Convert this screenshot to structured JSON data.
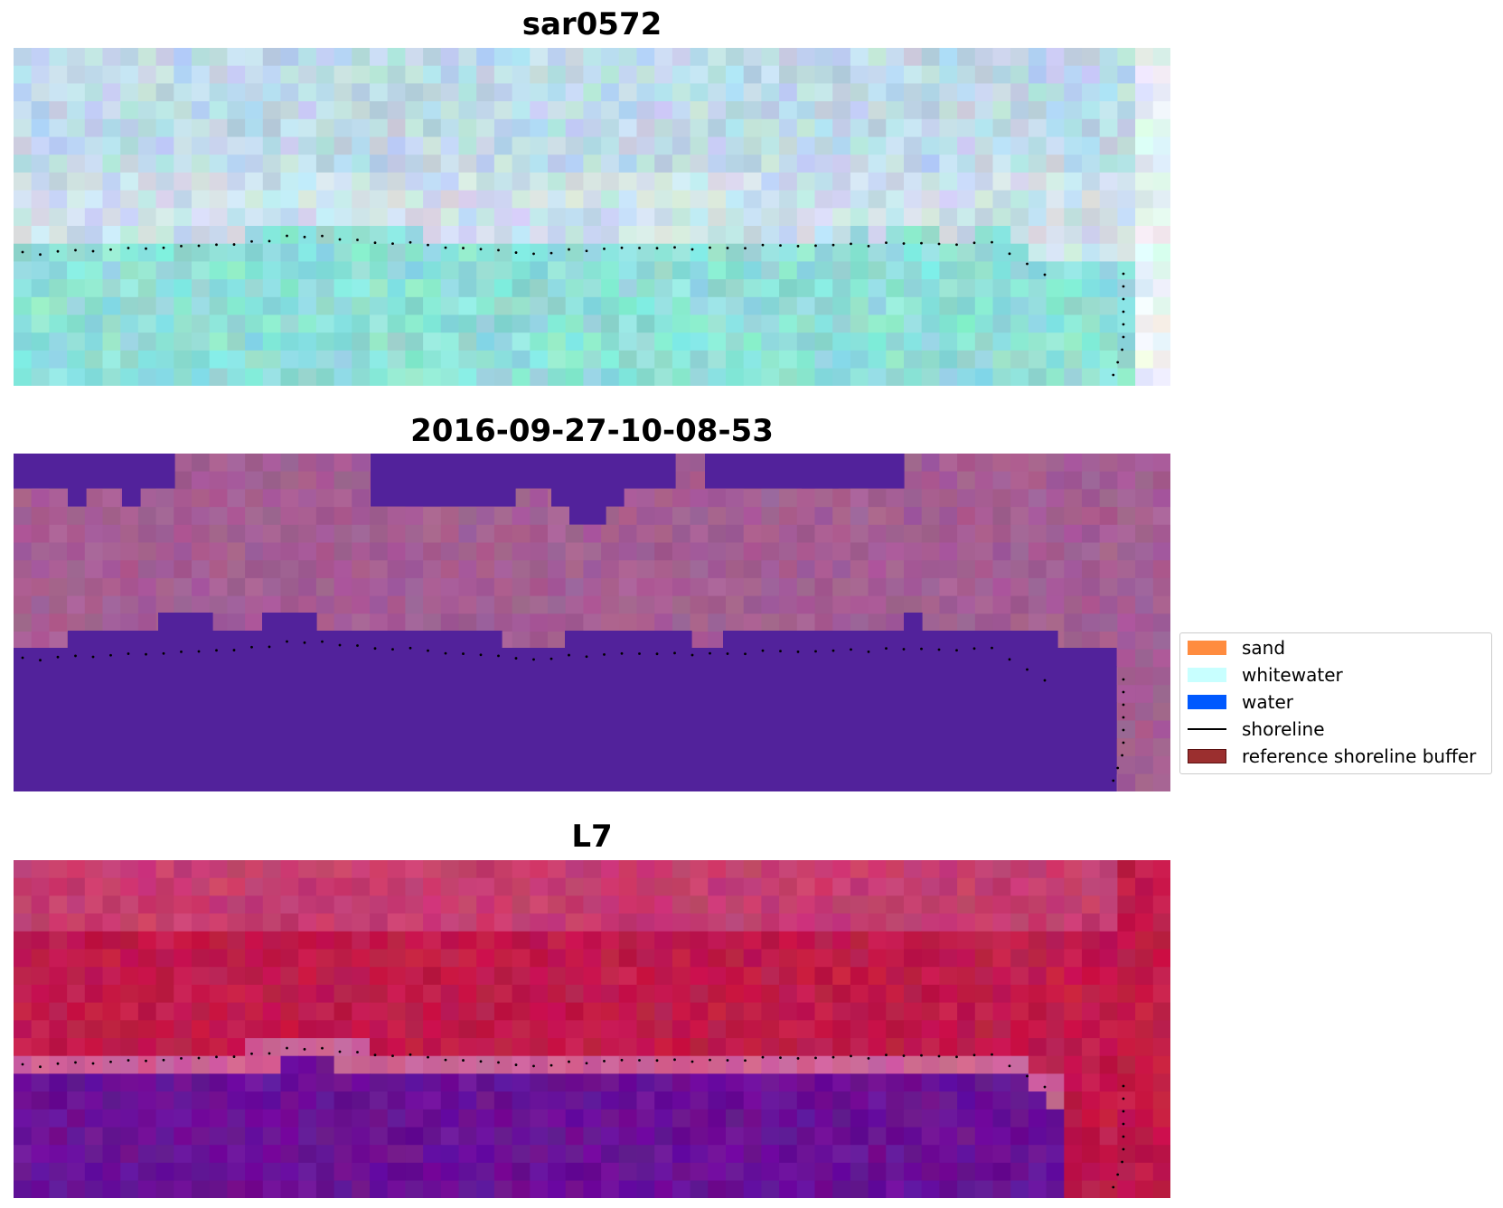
{
  "panels": [
    {
      "title": "sar0572",
      "style": "rgb_light"
    },
    {
      "title": "2016-09-27-10-08-53",
      "style": "classified"
    },
    {
      "title": "L7",
      "style": "false_color"
    }
  ],
  "legend": {
    "items": [
      {
        "label": "sand",
        "kind": "patch",
        "color": "#ff8c3f",
        "edge": "#ff8c3f"
      },
      {
        "label": "whitewater",
        "kind": "patch",
        "color": "#c8ffff",
        "edge": "#c8ffff"
      },
      {
        "label": "water",
        "kind": "patch",
        "color": "#0059ff",
        "edge": "#0059ff"
      },
      {
        "label": "shoreline",
        "kind": "line",
        "color": "#000000"
      },
      {
        "label": "reference shoreline buffer",
        "kind": "patch",
        "color": "#9b2f2f",
        "edge": "#5a1010"
      }
    ]
  },
  "colors": {
    "classified_water": "#52229b",
    "classified_land": "#a45e93",
    "falsecolor_land": "#c01a4a",
    "falsecolor_water": "#6a1196",
    "rgb_sky": "#b8d6e6",
    "rgb_sea": "#8ee0d8"
  }
}
